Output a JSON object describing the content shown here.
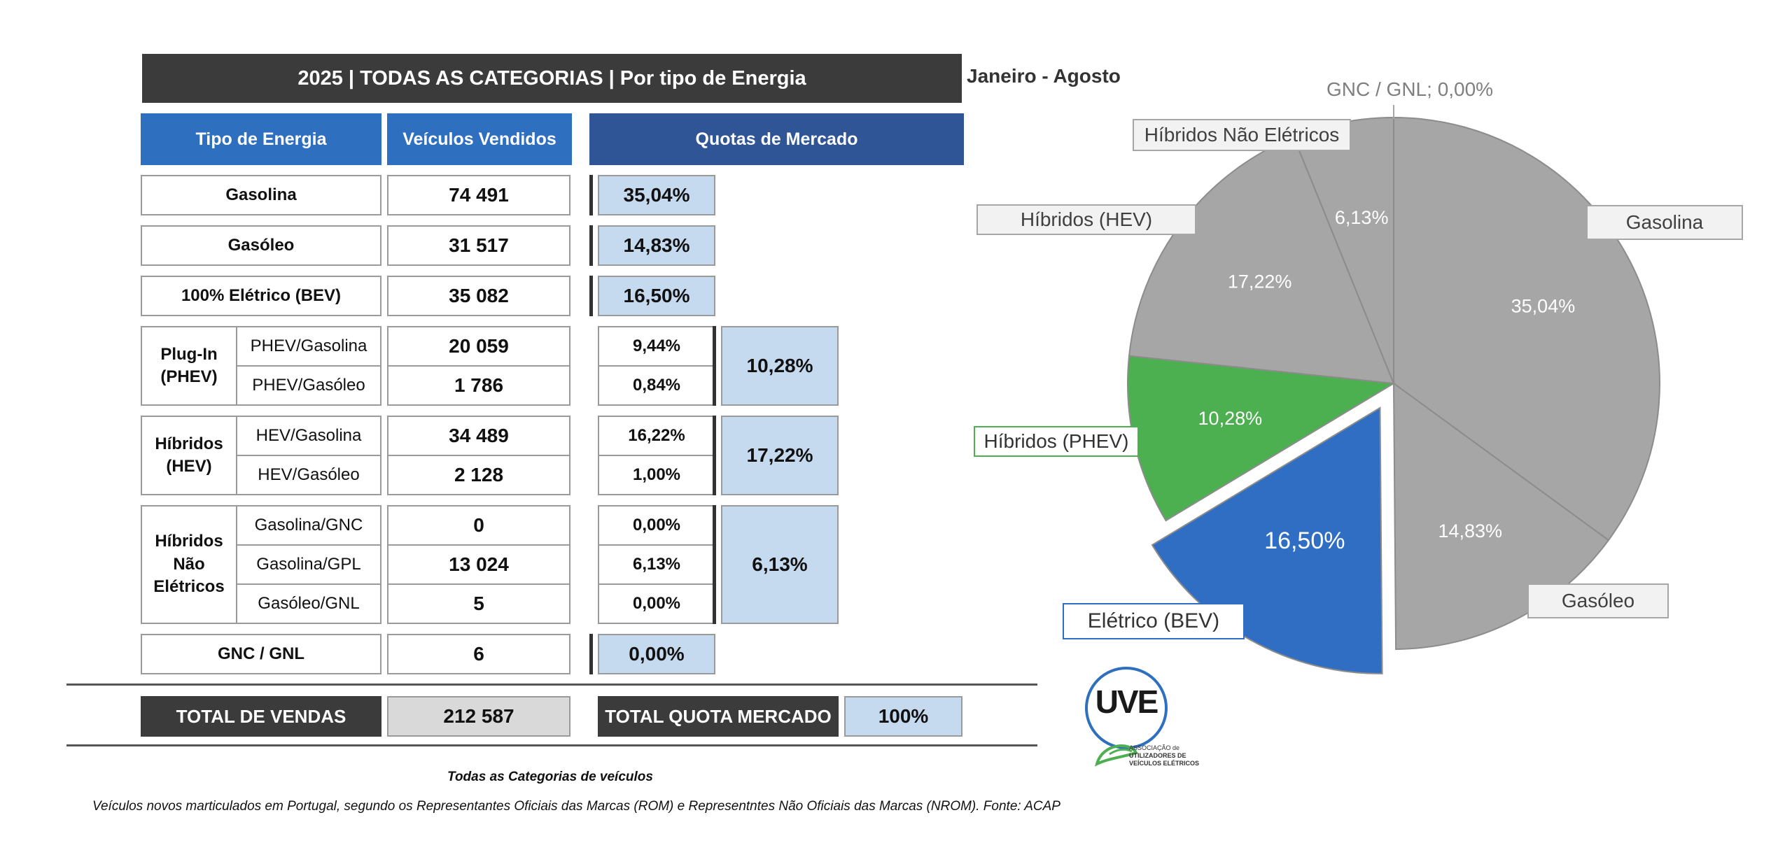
{
  "title": "2025 | TODAS AS CATEGORIAS | Por tipo de Energia",
  "period": "Janeiro - Agosto",
  "headers": {
    "tipo": "Tipo de Energia",
    "vendidos": "Veículos Vendidos",
    "quotas": "Quotas de Mercado"
  },
  "rows": {
    "gasolina": {
      "label": "Gasolina",
      "sold": "74 491",
      "share": "35,04%"
    },
    "gasoleo": {
      "label": "Gasóleo",
      "sold": "31 517",
      "share": "14,83%"
    },
    "bev": {
      "label": "100% Elétrico (BEV)",
      "sold": "35 082",
      "share": "16,50%"
    },
    "phev": {
      "group": "Plug-In (PHEV)",
      "total": "10,28%",
      "items": [
        {
          "label": "PHEV/Gasolina",
          "sold": "20 059",
          "share": "9,44%"
        },
        {
          "label": "PHEV/Gasóleo",
          "sold": "1 786",
          "share": "0,84%"
        }
      ]
    },
    "hev": {
      "group": "Híbridos (HEV)",
      "total": "17,22%",
      "items": [
        {
          "label": "HEV/Gasolina",
          "sold": "34 489",
          "share": "16,22%"
        },
        {
          "label": "HEV/Gasóleo",
          "sold": "2 128",
          "share": "1,00%"
        }
      ]
    },
    "hne": {
      "group": "Híbridos Não Elétricos",
      "total": "6,13%",
      "items": [
        {
          "label": "Gasolina/GNC",
          "sold": "0",
          "share": "0,00%"
        },
        {
          "label": "Gasolina/GPL",
          "sold": "13 024",
          "share": "6,13%"
        },
        {
          "label": "Gasóleo/GNL",
          "sold": "5",
          "share": "0,00%"
        }
      ]
    },
    "gnc": {
      "label": "GNC / GNL",
      "sold": "6",
      "share": "0,00%"
    }
  },
  "totals": {
    "vendas_label": "TOTAL DE VENDAS",
    "vendas_value": "212 587",
    "quota_label": "TOTAL QUOTA MERCADO",
    "quota_value": "100%"
  },
  "footer": {
    "subtitle": "Todas as Categorias de veículos",
    "source": "Veículos novos marticulados em Portugal, segundo os Representantes Oficiais das Marcas (ROM) e Representntes Não Oficiais das Marcas (NROM). Fonte: ACAP"
  },
  "logo": {
    "mark": "UVE",
    "text": [
      "ASSOCIAÇÃO de",
      "UTILIZADORES DE",
      "VEÍCULOS ELÉTRICOS"
    ]
  },
  "colors": {
    "header_blue": "#2e6fc0",
    "header_navy": "#2f5597",
    "share_fill": "#c5d9ef",
    "dark": "#3b3b3b",
    "pie_grey": "#a6a6a6",
    "pie_green": "#4caf50",
    "pie_blue": "#2f6ec2"
  },
  "chart_data": {
    "type": "pie",
    "slices": [
      {
        "name": "GNC / GNL",
        "value": 0.0,
        "label": "GNC / GNL; 0,00%",
        "color": "#a6a6a6"
      },
      {
        "name": "Gasolina",
        "value": 35.04,
        "label": "35,04%",
        "color": "#a6a6a6"
      },
      {
        "name": "Gasóleo",
        "value": 14.83,
        "label": "14,83%",
        "color": "#a6a6a6"
      },
      {
        "name": "Elétrico (BEV)",
        "value": 16.5,
        "label": "16,50%",
        "color": "#2f6ec2",
        "exploded": true
      },
      {
        "name": "Híbridos (PHEV)",
        "value": 10.28,
        "label": "10,28%",
        "color": "#4caf50"
      },
      {
        "name": "Híbridos (HEV)",
        "value": 17.22,
        "label": "17,22%",
        "color": "#a6a6a6"
      },
      {
        "name": "Híbridos Não Elétricos",
        "value": 6.13,
        "label": "6,13%",
        "color": "#a6a6a6"
      }
    ]
  }
}
